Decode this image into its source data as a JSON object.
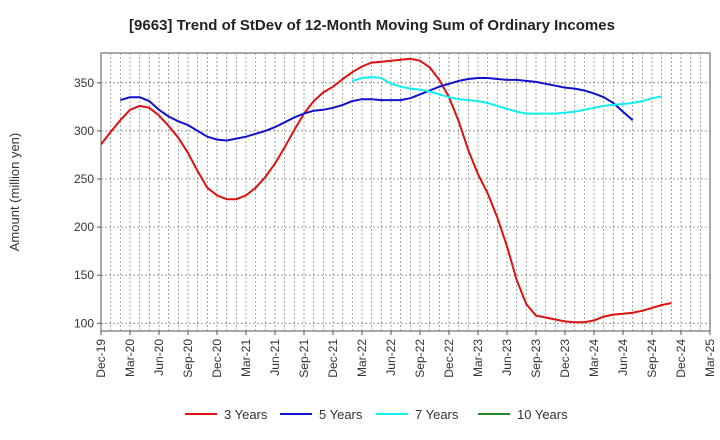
{
  "chart_data": {
    "type": "line",
    "title": "[9663]  Trend of StDev of 12-Month Moving Sum of Ordinary Incomes",
    "xlabel": "",
    "ylabel": "Amount (million yen)",
    "ylim": [
      92,
      381
    ],
    "yticks": [
      100,
      150,
      200,
      250,
      300,
      350
    ],
    "xlim": [
      0,
      63
    ],
    "x_tick_labels": [
      "Dec-19",
      "Mar-20",
      "Jun-20",
      "Sep-20",
      "Dec-20",
      "Mar-21",
      "Jun-21",
      "Sep-21",
      "Dec-21",
      "Mar-22",
      "Jun-22",
      "Sep-22",
      "Dec-22",
      "Mar-23",
      "Jun-23",
      "Sep-23",
      "Dec-23",
      "Mar-24",
      "Jun-24",
      "Sep-24",
      "Dec-24",
      "Mar-25"
    ],
    "grid": true,
    "legend_position": "bottom",
    "series": [
      {
        "name": "3 Years",
        "color": "#dd1111",
        "x": [
          0,
          1,
          2,
          3,
          4,
          5,
          6,
          7,
          8,
          9,
          10,
          11,
          12,
          13,
          14,
          15,
          16,
          17,
          18,
          19,
          20,
          21,
          22,
          23,
          24,
          25,
          26,
          27,
          28,
          29,
          30,
          31,
          32,
          33,
          34,
          35,
          36,
          37,
          38,
          39,
          40,
          41,
          42,
          43,
          44,
          45,
          46,
          47,
          48,
          49,
          50,
          51,
          52,
          53,
          54,
          55,
          56,
          57,
          58,
          59,
          60
        ],
        "values": [
          286,
          299,
          311,
          322,
          326,
          324,
          316,
          305,
          293,
          277,
          258,
          241,
          233,
          229,
          229,
          233,
          241,
          252,
          266,
          283,
          301,
          318,
          331,
          340,
          346,
          354,
          361,
          367,
          371,
          372,
          373,
          374,
          375,
          373,
          366,
          353,
          335,
          310,
          280,
          255,
          235,
          210,
          180,
          145,
          120,
          108,
          106,
          104,
          102,
          101,
          101,
          103,
          107,
          109,
          110,
          111,
          113,
          116,
          119,
          121,
          null
        ]
      },
      {
        "name": "5 Years",
        "color": "#1111cc",
        "x": [
          2,
          3,
          4,
          5,
          6,
          7,
          8,
          9,
          10,
          11,
          12,
          13,
          14,
          15,
          16,
          17,
          18,
          19,
          20,
          21,
          22,
          23,
          24,
          25,
          26,
          27,
          28,
          29,
          30,
          31,
          32,
          33,
          34,
          35,
          36,
          37,
          38,
          39,
          40,
          41,
          42,
          43,
          44,
          45,
          46,
          47,
          48,
          49,
          50,
          51,
          52,
          53,
          54,
          55,
          56,
          57,
          58,
          59,
          60
        ],
        "values": [
          332,
          335,
          335,
          331,
          322,
          315,
          310,
          306,
          300,
          294,
          291,
          290,
          292,
          294,
          297,
          300,
          304,
          309,
          314,
          318,
          321,
          322,
          324,
          327,
          331,
          333,
          333,
          332,
          332,
          332,
          334,
          338,
          342,
          346,
          349,
          352,
          354,
          355,
          355,
          354,
          353,
          353,
          352,
          351,
          349,
          347,
          345,
          344,
          342,
          339,
          335,
          329,
          320,
          311,
          null,
          null,
          null,
          null,
          null
        ],
        "note": "x index 0 = Dec-19, monthly steps"
      },
      {
        "name": "7 Years",
        "color": "#11eeee",
        "x": [
          26,
          27,
          28,
          29,
          30,
          31,
          32,
          33,
          34,
          35,
          36,
          37,
          38,
          39,
          40,
          41,
          42,
          43,
          44,
          45,
          46,
          47,
          48,
          49,
          50,
          51,
          52,
          53,
          54,
          55,
          56,
          57,
          58,
          59,
          60
        ],
        "values": [
          352,
          355,
          356,
          355,
          349,
          346,
          344,
          343,
          341,
          338,
          335,
          333,
          332,
          331,
          329,
          326,
          323,
          320,
          318,
          318,
          318,
          318,
          319,
          320,
          322,
          324,
          326,
          327,
          328,
          329,
          331,
          334,
          336,
          null,
          null
        ]
      },
      {
        "name": "10 Years",
        "color": "#228822",
        "x": [],
        "values": []
      }
    ]
  }
}
